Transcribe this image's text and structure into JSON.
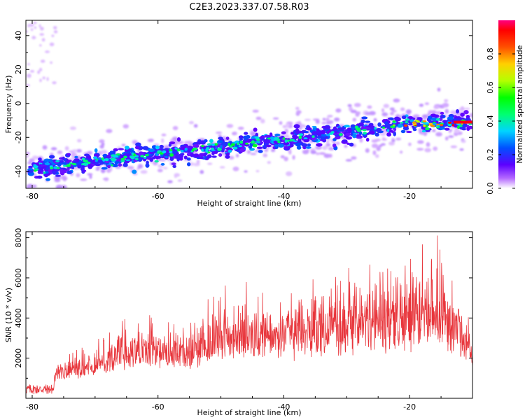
{
  "title": "C2E3.2023.337.07.58.R03",
  "colors": {
    "snr_line": "#e8363c",
    "frame": "#000000",
    "background": "#ffffff"
  },
  "chart_data": [
    {
      "type": "heatmap",
      "xlabel": "Height of straight line (km)",
      "ylabel": "Frequency (Hz)",
      "xlim": [
        -81,
        -10
      ],
      "ylim": [
        -50,
        49
      ],
      "xticks": [
        -80,
        -60,
        -40,
        -20
      ],
      "yticks": [
        40,
        20,
        0,
        -20,
        -40
      ],
      "colormap": "rainbow",
      "colorbar": {
        "label": "Normalized spectral amplitude",
        "range": [
          0.0,
          1.0
        ],
        "ticks": [
          0.0,
          0.2,
          0.4,
          0.6,
          0.8
        ]
      },
      "trace": {
        "description_points": [
          {
            "x": -80,
            "y": -38
          },
          {
            "x": -75,
            "y": -37
          },
          {
            "x": -70,
            "y": -34
          },
          {
            "x": -65,
            "y": -32
          },
          {
            "x": -60,
            "y": -30
          },
          {
            "x": -55,
            "y": -28
          },
          {
            "x": -50,
            "y": -27
          },
          {
            "x": -45,
            "y": -22
          },
          {
            "x": -40,
            "y": -22
          },
          {
            "x": -35,
            "y": -19
          },
          {
            "x": -30,
            "y": -17
          },
          {
            "x": -25,
            "y": -14
          },
          {
            "x": -20,
            "y": -12
          },
          {
            "x": -15,
            "y": -12
          },
          {
            "x": -10,
            "y": -11
          }
        ]
      }
    },
    {
      "type": "line",
      "xlabel": "Height of straight line (km)",
      "ylabel": "SNR (10 * v/v)",
      "xlim": [
        -81,
        -10
      ],
      "ylim": [
        0,
        8300
      ],
      "xticks": [
        -80,
        -60,
        -40,
        -20
      ],
      "yticks": [
        2000,
        4000,
        6000,
        8000
      ],
      "series": [
        {
          "envelope": [
            {
              "x": -81,
              "y": 700
            },
            {
              "x": -78,
              "y": 600
            },
            {
              "x": -76,
              "y": 2000
            },
            {
              "x": -70,
              "y": 2800
            },
            {
              "x": -66,
              "y": 4000
            },
            {
              "x": -60,
              "y": 4300
            },
            {
              "x": -55,
              "y": 4000
            },
            {
              "x": -50,
              "y": 5800
            },
            {
              "x": -45,
              "y": 5800
            },
            {
              "x": -40,
              "y": 5500
            },
            {
              "x": -35,
              "y": 6500
            },
            {
              "x": -30,
              "y": 6800
            },
            {
              "x": -25,
              "y": 7200
            },
            {
              "x": -20,
              "y": 7500
            },
            {
              "x": -15,
              "y": 8300
            },
            {
              "x": -12,
              "y": 6000
            },
            {
              "x": -10,
              "y": 3500
            }
          ]
        }
      ]
    }
  ]
}
